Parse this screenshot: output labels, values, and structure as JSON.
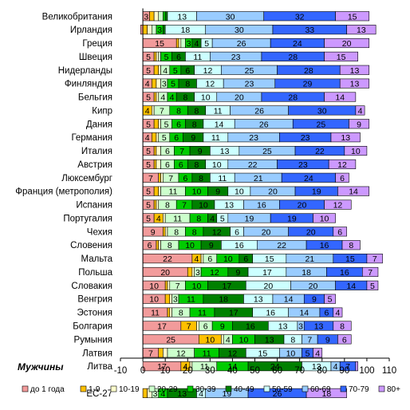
{
  "chart_data": {
    "type": "bar",
    "orientation": "horizontal",
    "stacked": true,
    "panel_label": "Мужчины",
    "xlim": [
      -10,
      110
    ],
    "xticks": [
      -10,
      0,
      10,
      20,
      30,
      40,
      50,
      60,
      70,
      80,
      90,
      100,
      110
    ],
    "categories": [
      "Великобритания",
      "Ирландия",
      "Греция",
      "Швеция",
      "Нидерланды",
      "Финляндия",
      "Бельгия",
      "Кипр",
      "Дания",
      "Германия",
      "Италия",
      "Австрия",
      "Люксембург",
      "Франция (метрополия)",
      "Испания",
      "Португалия",
      "Чехия",
      "Словения",
      "Мальта",
      "Польша",
      "Словакия",
      "Венгрия",
      "Эстония",
      "Болгария",
      "Румыния",
      "Латвия",
      "Литва",
      "",
      "ЕС-27"
    ],
    "series": [
      {
        "name": "до 1 года",
        "color": "#f29b9b",
        "values": [
          3,
          -1,
          15,
          5,
          5,
          4,
          5,
          0,
          5,
          4,
          5,
          5,
          7,
          5,
          5,
          5,
          9,
          6,
          22,
          20,
          10,
          10,
          11,
          17,
          25,
          7,
          17,
          null,
          0
        ]
      },
      {
        "name": "1-9",
        "color": "#ffc000",
        "values": [
          2,
          2,
          1,
          1,
          2,
          2,
          1,
          4,
          2,
          2,
          1,
          1,
          1,
          2,
          1,
          4,
          1,
          1,
          4,
          2,
          1,
          2,
          1,
          7,
          10,
          2,
          4,
          null,
          2
        ]
      },
      {
        "name": "10-19",
        "color": "#ffffcc",
        "values": [
          2,
          2,
          1,
          1,
          1,
          2,
          1,
          1,
          1,
          1,
          2,
          2,
          1,
          1,
          1,
          1,
          1,
          1,
          1,
          1,
          1,
          1,
          1,
          1,
          1,
          2,
          1,
          null,
          2
        ]
      },
      {
        "name": "20-29",
        "color": "#ccffcc",
        "values": [
          2,
          2,
          2,
          1,
          4,
          3,
          4,
          7,
          5,
          5,
          6,
          6,
          7,
          11,
          8,
          11,
          8,
          8,
          6,
          3,
          7,
          3,
          8,
          6,
          4,
          12,
          11,
          null,
          3
        ]
      },
      {
        "name": "30-39",
        "color": "#00cc00",
        "values": [
          1,
          3,
          3,
          5,
          5,
          5,
          4,
          8,
          6,
          6,
          7,
          6,
          6,
          10,
          7,
          8,
          8,
          10,
          10,
          12,
          10,
          11,
          11,
          9,
          10,
          11,
          14,
          null,
          4
        ]
      },
      {
        "name": "40-49",
        "color": "#008000",
        "values": [
          1,
          1,
          4,
          6,
          6,
          8,
          8,
          8,
          8,
          9,
          9,
          8,
          8,
          9,
          10,
          4,
          12,
          9,
          6,
          9,
          17,
          18,
          17,
          16,
          13,
          12,
          24,
          null,
          13
        ]
      },
      {
        "name": "50-59",
        "color": "#ccffff",
        "values": [
          13,
          18,
          5,
          11,
          12,
          12,
          10,
          11,
          14,
          11,
          13,
          10,
          11,
          10,
          13,
          5,
          6,
          16,
          15,
          17,
          20,
          13,
          16,
          13,
          8,
          15,
          13,
          null,
          4
        ]
      },
      {
        "name": "60-69",
        "color": "#99ccff",
        "values": [
          30,
          30,
          26,
          23,
          25,
          23,
          20,
          26,
          26,
          23,
          25,
          22,
          21,
          20,
          16,
          19,
          20,
          22,
          21,
          18,
          20,
          14,
          14,
          3,
          7,
          10,
          4,
          null,
          19
        ]
      },
      {
        "name": "70-79",
        "color": "#3366ff",
        "values": [
          32,
          33,
          24,
          28,
          28,
          29,
          28,
          30,
          25,
          23,
          22,
          23,
          24,
          19,
          20,
          19,
          20,
          16,
          15,
          16,
          14,
          9,
          6,
          13,
          9,
          5,
          7,
          null,
          26
        ]
      },
      {
        "name": "80+",
        "color": "#cc99ff",
        "values": [
          15,
          13,
          20,
          15,
          13,
          13,
          14,
          4,
          9,
          13,
          10,
          12,
          6,
          14,
          12,
          10,
          6,
          8,
          7,
          7,
          5,
          5,
          4,
          8,
          6,
          4,
          1,
          null,
          18
        ]
      }
    ],
    "value_labels_shown_min": 3,
    "legend_position": "bottom",
    "grid": false
  }
}
